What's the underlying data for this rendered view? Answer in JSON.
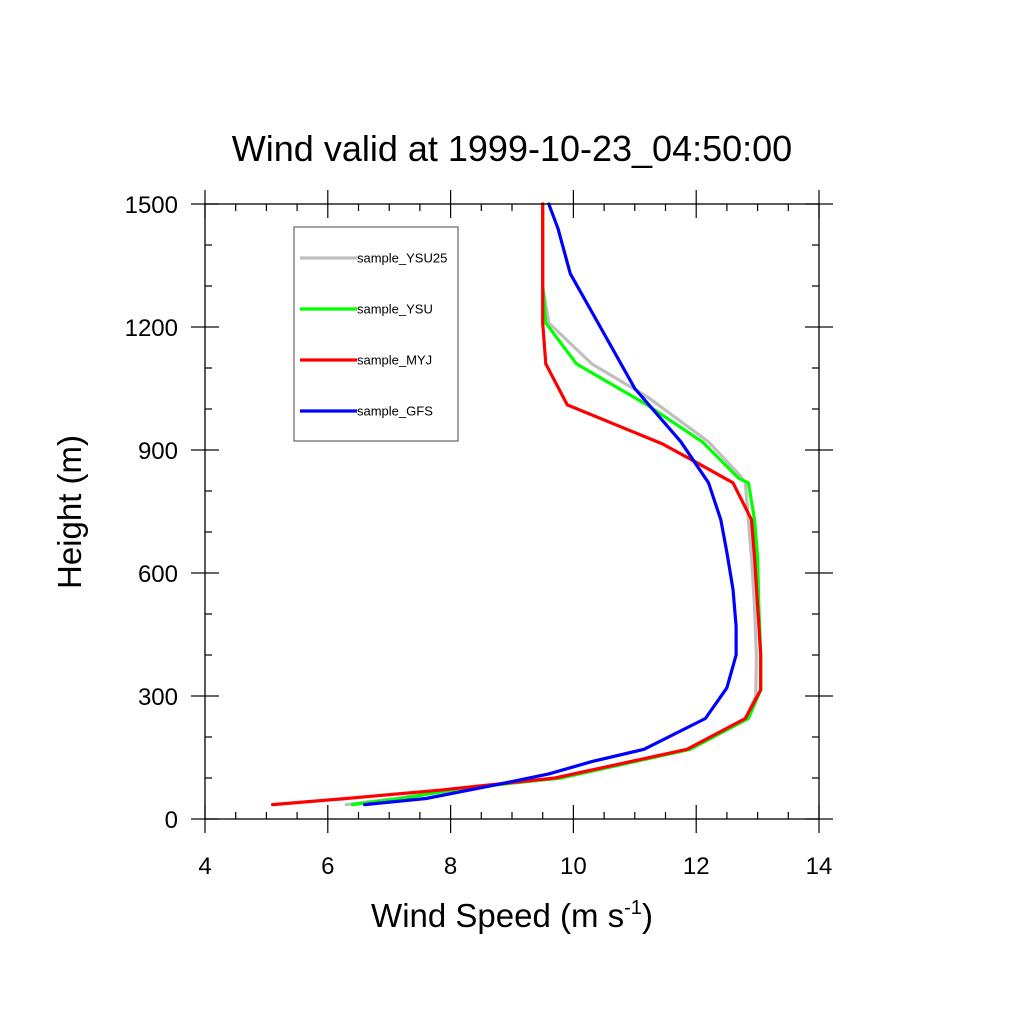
{
  "chart_data": {
    "type": "line",
    "title": "Wind valid at 1999-10-23_04:50:00",
    "xlabel": "Wind Speed (m s",
    "xlabel_sup": "-1",
    "xlabel_end": ")",
    "ylabel": "Height (m)",
    "xlim": [
      4,
      14
    ],
    "ylim": [
      0,
      1500
    ],
    "xticks": [
      4,
      6,
      8,
      10,
      12,
      14
    ],
    "yticks": [
      0,
      300,
      600,
      900,
      1200,
      1500
    ],
    "xtick_labels": [
      "4",
      "6",
      "8",
      "10",
      "12",
      "14"
    ],
    "ytick_labels": [
      "0",
      "300",
      "600",
      "900",
      "1200",
      "1500"
    ],
    "legend_position": "top-left",
    "series": [
      {
        "name": "sample_YSU25",
        "color": "#bfbfbf",
        "x": [
          6.3,
          7.1,
          8.2,
          9.8,
          11.9,
          12.8,
          12.97,
          12.98,
          12.95,
          12.9,
          12.85,
          12.8,
          12.7,
          12.2,
          11.2,
          10.3,
          9.6,
          9.5,
          9.5
        ],
        "y": [
          35,
          50,
          75,
          100,
          170,
          245,
          300,
          400,
          520,
          640,
          730,
          820,
          840,
          920,
          1030,
          1110,
          1210,
          1300,
          1500
        ]
      },
      {
        "name": "sample_YSU",
        "color": "#00ff00",
        "x": [
          6.4,
          7.2,
          8.2,
          9.8,
          11.9,
          12.85,
          13.05,
          13.05,
          13.02,
          13.0,
          12.95,
          12.85,
          12.7,
          12.1,
          11.2,
          10.05,
          9.55,
          9.5,
          9.5
        ],
        "y": [
          35,
          50,
          75,
          100,
          170,
          245,
          315,
          400,
          520,
          640,
          730,
          820,
          830,
          920,
          1010,
          1110,
          1210,
          1300,
          1500
        ]
      },
      {
        "name": "sample_MYJ",
        "color": "#ff0000",
        "x": [
          5.1,
          6.3,
          7.8,
          9.7,
          11.85,
          12.8,
          13.05,
          13.05,
          13.0,
          12.95,
          12.9,
          12.6,
          12.0,
          11.45,
          9.9,
          9.55,
          9.5,
          9.5
        ],
        "y": [
          35,
          50,
          70,
          100,
          170,
          245,
          315,
          400,
          520,
          640,
          730,
          820,
          870,
          915,
          1010,
          1110,
          1210,
          1500
        ]
      },
      {
        "name": "sample_GFS",
        "color": "#0000ff",
        "x": [
          6.6,
          7.6,
          8.8,
          9.6,
          10.3,
          11.15,
          12.15,
          12.5,
          12.65,
          12.65,
          12.6,
          12.5,
          12.4,
          12.2,
          11.75,
          11.0,
          10.4,
          9.95,
          9.75,
          9.6
        ],
        "y": [
          35,
          50,
          85,
          110,
          140,
          170,
          245,
          320,
          400,
          470,
          560,
          650,
          730,
          820,
          920,
          1050,
          1210,
          1330,
          1440,
          1500
        ]
      }
    ]
  }
}
